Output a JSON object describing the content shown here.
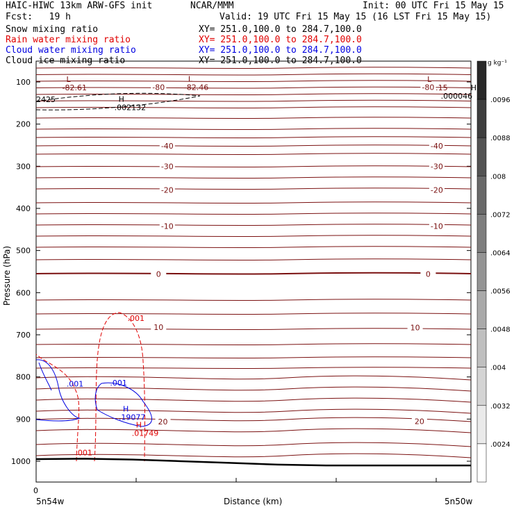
{
  "header": {
    "model_line": "HAIC-HIWC 13km ARW-GFS init",
    "org": "NCAR/MMM",
    "init": "Init: 00 UTC Fri 15 May 15",
    "fcst": "Fcst:   19 h",
    "valid": "Valid: 19 UTC Fri 15 May 15 (16 LST Fri 15 May 15)"
  },
  "fields": [
    {
      "label": "Snow mixing ratio",
      "xy": "XY= 251.0,100.0 to 284.7,100.0",
      "color": "#000000"
    },
    {
      "label": "Rain water mixing ratio",
      "xy": "XY= 251.0,100.0 to 284.7,100.0",
      "color": "#e00000"
    },
    {
      "label": "Cloud water mixing ratio",
      "xy": "XY= 251.0,100.0 to 284.7,100.0",
      "color": "#0000e0"
    },
    {
      "label": "Cloud ice mixing ratio",
      "xy": "XY= 251.0,100.0 to 284.7,100.0",
      "color": "#000000"
    }
  ],
  "axes": {
    "ylabel": "Pressure (hPa)",
    "xlabel": "Distance (km)",
    "x_origin": "0",
    "x_left": "5n54w",
    "x_right": "5n50w"
  },
  "colorbar": {
    "unit": "g kg⁻¹",
    "labels": [
      ".0096",
      ".0088",
      ".008",
      ".0072",
      ".0064",
      ".0056",
      ".0048",
      ".004",
      ".0032",
      ".0024"
    ]
  },
  "colors": {
    "temperature": "#7a1010",
    "rain": "#e00000",
    "cloud_water": "#0000e0",
    "ground": "#000000"
  },
  "chart_data": {
    "type": "contour cross-section",
    "y_axis": {
      "ticks": [
        100,
        200,
        300,
        400,
        500,
        600,
        700,
        800,
        900,
        1000
      ],
      "range": [
        1050,
        50
      ],
      "reversed": true
    },
    "temperature_labels": [
      {
        "text": "-80",
        "p": 112,
        "x": 0.28
      },
      {
        "text": "-80",
        "p": 112,
        "x": 0.9
      },
      {
        "text": "-40",
        "p": 252,
        "x": 0.3
      },
      {
        "text": "-40",
        "p": 252,
        "x": 0.92
      },
      {
        "text": "-30",
        "p": 300,
        "x": 0.3
      },
      {
        "text": "-30",
        "p": 300,
        "x": 0.92
      },
      {
        "text": "-20",
        "p": 356,
        "x": 0.3
      },
      {
        "text": "-20",
        "p": 356,
        "x": 0.92
      },
      {
        "text": "-10",
        "p": 442,
        "x": 0.3
      },
      {
        "text": "-10",
        "p": 442,
        "x": 0.92
      },
      {
        "text": "0",
        "p": 556,
        "x": 0.28
      },
      {
        "text": "0",
        "p": 556,
        "x": 0.9
      },
      {
        "text": "10",
        "p": 682,
        "x": 0.28
      },
      {
        "text": "10",
        "p": 683,
        "x": 0.87
      },
      {
        "text": "20",
        "p": 906,
        "x": 0.29
      },
      {
        "text": "20",
        "p": 905,
        "x": 0.88
      }
    ],
    "extrema": [
      {
        "mark": "L",
        "value": "-82.61",
        "p": 100,
        "x": 0.06,
        "color": "#7a1010"
      },
      {
        "mark": "L",
        "value": "-82.46",
        "p": 99,
        "x": 0.34,
        "color": "#7a1010"
      },
      {
        "mark": "L",
        "value": "-83.15",
        "p": 100,
        "x": 0.89,
        "color": "#7a1010"
      },
      {
        "mark": "H",
        "value": ".000046",
        "p": 120,
        "x": 0.99,
        "color": "#000000"
      },
      {
        "mark": "H",
        "value": ".002132",
        "p": 147,
        "x": 0.18,
        "color": "#000000"
      },
      {
        "mark": "H",
        "value": ".19077",
        "p": 882,
        "x": 0.19,
        "color": "#0000e0"
      },
      {
        "mark": "H",
        "value": ".01749",
        "p": 920,
        "x": 0.22,
        "color": "#e00000"
      }
    ],
    "contour_labels": [
      {
        "text": "2425",
        "p": 148,
        "x": 0.0,
        "color": "#000000"
      },
      {
        "text": ".001",
        "p": 667,
        "x": 0.21,
        "color": "#e00000"
      },
      {
        "text": ".001",
        "p": 986,
        "x": 0.09,
        "color": "#e00000"
      },
      {
        "text": ".001",
        "p": 823,
        "x": 0.07,
        "color": "#0000e0"
      },
      {
        "text": ".001",
        "p": 820,
        "x": 0.17,
        "color": "#0000e0"
      }
    ],
    "ground_pressure": [
      995,
      994,
      996,
      1000,
      1004,
      1008,
      1010,
      1010,
      1010,
      1010
    ]
  }
}
